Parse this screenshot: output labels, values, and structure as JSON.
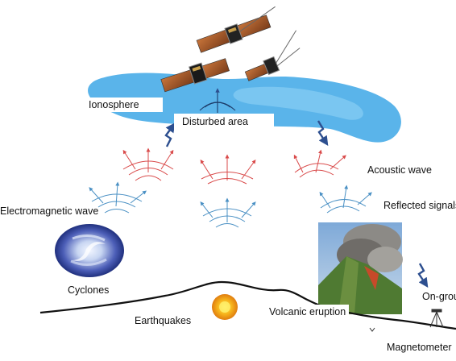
{
  "labels": {
    "ionosphere": "Ionosphere",
    "disturbed_area": "Disturbed area",
    "acoustic_wave": "Acoustic wave",
    "reflected_signals": "Reflected signals",
    "electromagnetic_wave": "Electromagnetic wave",
    "cyclones": "Cyclones",
    "earthquakes": "Earthquakes",
    "volcanic_eruption": "Volcanic eruption",
    "on_ground": "On-grou",
    "magnetometer": "Magnetometer"
  },
  "colors": {
    "ionosphere": "#5ab4ea",
    "acoustic_wave": "#d94a4a",
    "electromagnetic_wave": "#4a90c4",
    "arrow": "#2d4f8f",
    "ground": "#111111",
    "earthquake": "#f4a51c"
  },
  "icons": {
    "satellites": "satellite-icon",
    "cyclone": "cyclone-image",
    "earthquake": "earthquake-sun-icon",
    "volcano": "volcano-photo",
    "magnetometer": "tripod-icon"
  }
}
